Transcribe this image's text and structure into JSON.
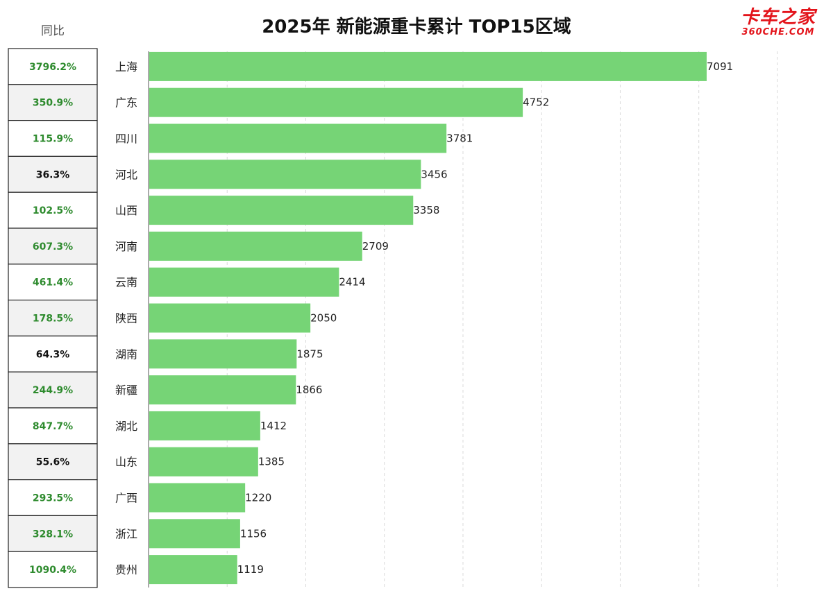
{
  "chart_data": {
    "type": "bar",
    "orientation": "horizontal",
    "title": "2025年 新能源重卡累计 TOP15区域",
    "yoy_header": "同比",
    "categories": [
      "上海",
      "广东",
      "四川",
      "河北",
      "山西",
      "河南",
      "云南",
      "陕西",
      "湖南",
      "新疆",
      "湖北",
      "山东",
      "广西",
      "浙江",
      "贵州"
    ],
    "values": [
      7091,
      4752,
      3781,
      3456,
      3358,
      2709,
      2414,
      2050,
      1875,
      1866,
      1412,
      1385,
      1220,
      1156,
      1119
    ],
    "yoy": [
      "3796.2%",
      "350.9%",
      "115.9%",
      "36.3%",
      "102.5%",
      "607.3%",
      "461.4%",
      "178.5%",
      "64.3%",
      "244.9%",
      "847.7%",
      "55.6%",
      "293.5%",
      "328.1%",
      "1090.4%"
    ],
    "yoy_highlight": [
      true,
      true,
      true,
      false,
      true,
      true,
      true,
      true,
      false,
      true,
      true,
      false,
      true,
      true,
      true
    ],
    "xlim": [
      0,
      8000
    ],
    "grid": true,
    "colors": {
      "bar": "#76d476",
      "yoy_green": "#2e8b2e",
      "yoy_black": "#111111",
      "grid": "#d9d9d9",
      "cell_alt": "#f2f2f2"
    }
  },
  "logo": {
    "main": "卡车之家",
    "sub": "360CHE.COM"
  }
}
